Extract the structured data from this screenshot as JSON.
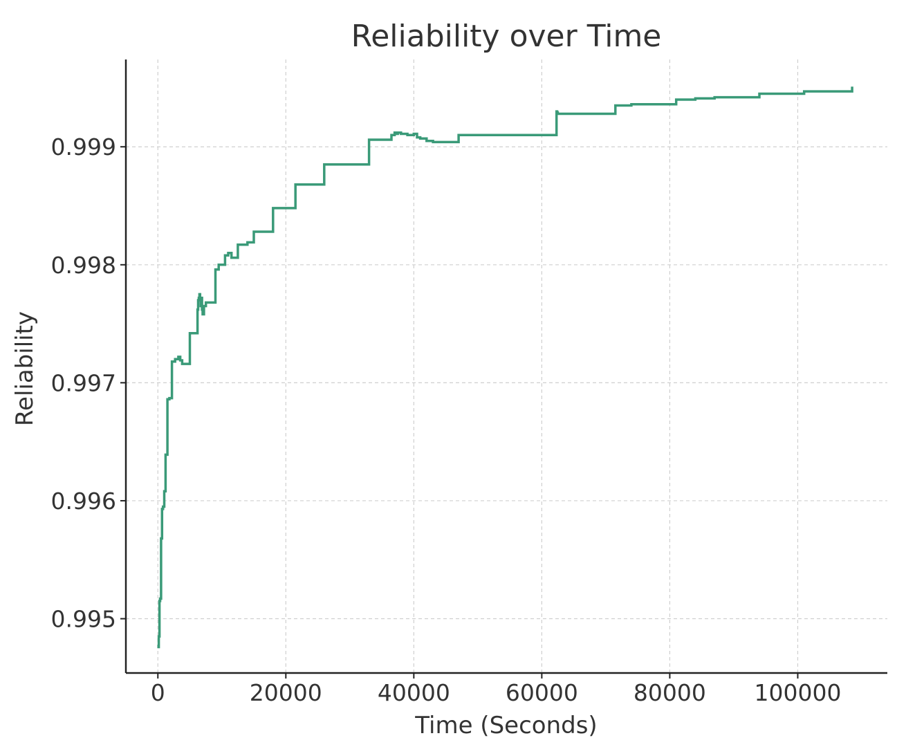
{
  "chart_data": {
    "type": "line",
    "step": true,
    "title": "Reliability over Time",
    "xlabel": "Time (Seconds)",
    "ylabel": "Reliability",
    "xlim": [
      -5000,
      114000
    ],
    "ylim": [
      0.99454,
      0.99974
    ],
    "xticks": [
      0,
      20000,
      40000,
      60000,
      80000,
      100000
    ],
    "xtick_labels": [
      "0",
      "20000",
      "40000",
      "60000",
      "80000",
      "100000"
    ],
    "yticks": [
      0.995,
      0.996,
      0.997,
      0.998,
      0.999
    ],
    "ytick_labels": [
      "0.995",
      "0.996",
      "0.997",
      "0.998",
      "0.999"
    ],
    "grid": true,
    "series": [
      {
        "color": "#3a9a78",
        "x": [
          0,
          100,
          150,
          250,
          350,
          500,
          650,
          800,
          1000,
          1200,
          1500,
          1800,
          2200,
          2700,
          3200,
          3500,
          3800,
          4200,
          5000,
          6200,
          6300,
          6400,
          6500,
          6600,
          6700,
          6800,
          6900,
          7000,
          7200,
          7500,
          9000,
          9500,
          10500,
          11000,
          11500,
          12500,
          14000,
          15000,
          18000,
          21500,
          26000,
          33000,
          36500,
          37000,
          37300,
          37500,
          38000,
          39000,
          40000,
          40500,
          41000,
          42000,
          43000,
          47000,
          62300,
          62400,
          62500,
          71500,
          74000,
          81000,
          84000,
          87000,
          94000,
          101000,
          108500
        ],
        "y": [
          0.99478,
          0.99476,
          0.99485,
          0.99515,
          0.99517,
          0.99568,
          0.99593,
          0.99595,
          0.99608,
          0.99639,
          0.99686,
          0.99687,
          0.99718,
          0.9972,
          0.99722,
          0.99719,
          0.99716,
          0.99716,
          0.99742,
          0.99762,
          0.9977,
          0.99772,
          0.99775,
          0.9977,
          0.99765,
          0.99772,
          0.99762,
          0.99758,
          0.99765,
          0.99768,
          0.99796,
          0.998,
          0.99808,
          0.9981,
          0.99806,
          0.99817,
          0.99819,
          0.99828,
          0.99848,
          0.99868,
          0.99885,
          0.99906,
          0.9991,
          0.99912,
          0.99911,
          0.99912,
          0.99911,
          0.9991,
          0.99911,
          0.99908,
          0.99907,
          0.99905,
          0.99904,
          0.9991,
          0.9993,
          0.99929,
          0.99928,
          0.99935,
          0.99936,
          0.9994,
          0.99941,
          0.99942,
          0.99945,
          0.99947,
          0.99951
        ]
      }
    ]
  }
}
